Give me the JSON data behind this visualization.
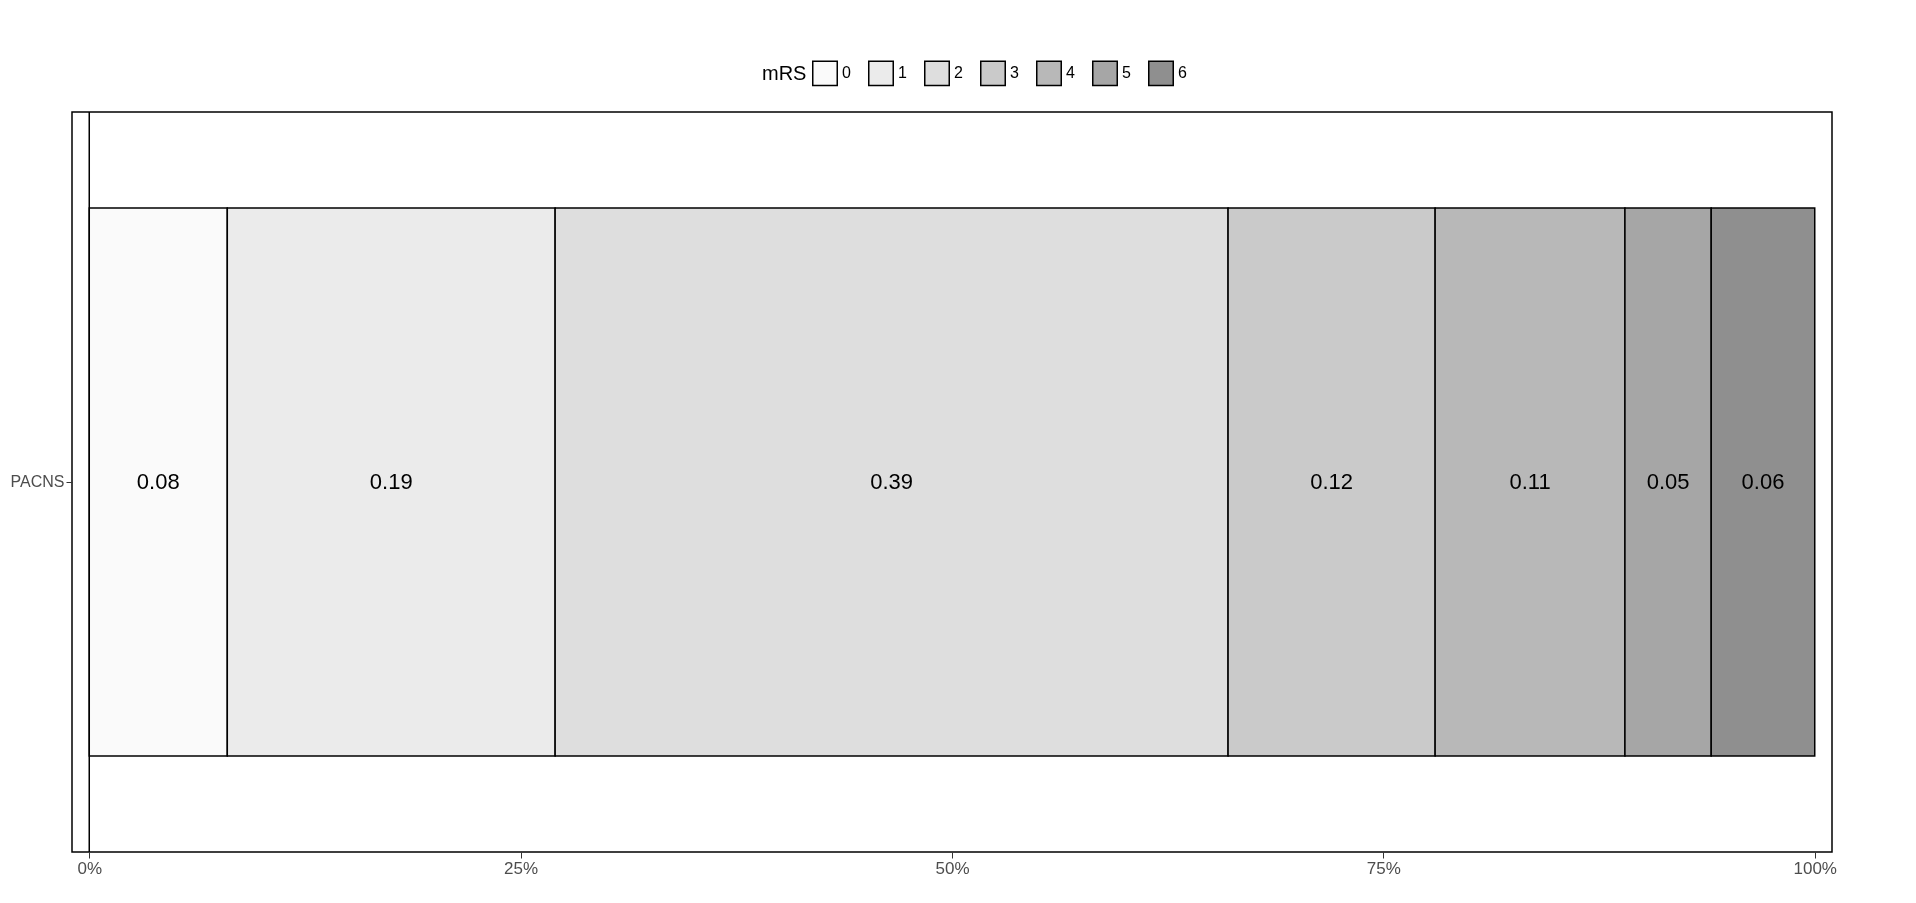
{
  "chart_data": {
    "type": "bar",
    "orientation": "horizontal",
    "stacked": true,
    "legend_title": "mRS",
    "legend": "top",
    "data_labels": true,
    "categories": [
      "PACNS"
    ],
    "series": [
      {
        "name": "0",
        "color": "#fafafa",
        "values": [
          0.08
        ]
      },
      {
        "name": "1",
        "color": "#ebebeb",
        "values": [
          0.19
        ]
      },
      {
        "name": "2",
        "color": "#dedede",
        "values": [
          0.39
        ]
      },
      {
        "name": "3",
        "color": "#cacaca",
        "values": [
          0.12
        ]
      },
      {
        "name": "4",
        "color": "#b8b8b8",
        "values": [
          0.11
        ]
      },
      {
        "name": "5",
        "color": "#a6a6a6",
        "values": [
          0.05
        ]
      },
      {
        "name": "6",
        "color": "#8f8f8f",
        "values": [
          0.06
        ]
      }
    ],
    "xlim": [
      -0.01,
      1.01
    ],
    "xticks": [
      {
        "value": 0,
        "label": "0%"
      },
      {
        "value": 0.25,
        "label": "25%"
      },
      {
        "value": 0.5,
        "label": "50%"
      },
      {
        "value": 0.75,
        "label": "75%"
      },
      {
        "value": 1,
        "label": "100%"
      }
    ],
    "ref_lines": [
      {
        "axis": "x",
        "value": 0,
        "color": "#000000"
      }
    ]
  }
}
